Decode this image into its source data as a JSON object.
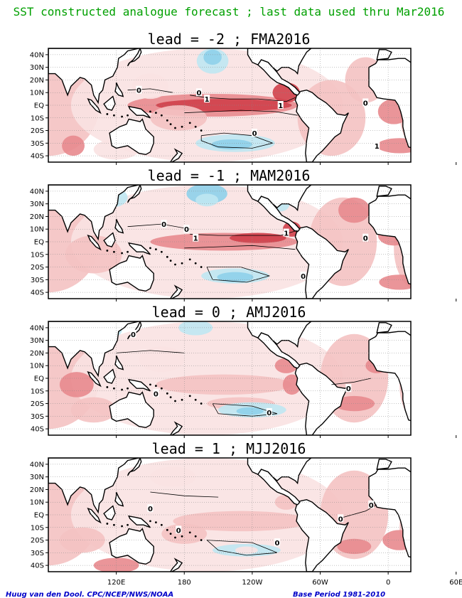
{
  "figure": {
    "title": "SST constructed analogue forecast ; last data used thru Mar2016",
    "title_color": "#00a000",
    "credit": "Huug van den Dool. CPC/NCEP/NWS/NOAA",
    "base_period": "Base Period 1981-2010",
    "footer_color": "#0000c8"
  },
  "chart_data": [
    {
      "type": "heatmap",
      "title": "lead = -2 ; FMA2016",
      "lat_labels": [
        "40N",
        "30N",
        "20N",
        "10N",
        "EQ",
        "10S",
        "20S",
        "30S",
        "40S"
      ],
      "contour_labels": [
        "0",
        "0",
        "1",
        "1",
        "0",
        "0",
        "1"
      ],
      "features": [
        "strong positive anomaly along equatorial Pacific",
        "negative anomaly North Pacific",
        "negative anomaly South Pacific",
        "positive anomaly Atlantic"
      ]
    },
    {
      "type": "heatmap",
      "title": "lead = -1 ; MAM2016",
      "lat_labels": [
        "40N",
        "30N",
        "20N",
        "10N",
        "EQ",
        "10S",
        "20S",
        "30S",
        "40S"
      ],
      "contour_labels": [
        "0",
        "0",
        "1",
        "1",
        "0",
        "0"
      ],
      "features": [
        "positive anomaly along equatorial Pacific",
        "negative anomaly North Pacific",
        "negative anomaly South Pacific"
      ]
    },
    {
      "type": "heatmap",
      "title": "lead = 0 ; AMJ2016",
      "lat_labels": [
        "40N",
        "30N",
        "20N",
        "10N",
        "EQ",
        "10S",
        "20S",
        "30S",
        "40S"
      ],
      "contour_labels": [
        "0",
        "0",
        "0",
        "0"
      ],
      "features": [
        "weak positive anomalies",
        "negative anomaly North Pacific",
        "negative anomaly South Pacific"
      ]
    },
    {
      "type": "heatmap",
      "title": "lead = 1 ; MJJ2016",
      "lat_labels": [
        "40N",
        "30N",
        "20N",
        "10N",
        "EQ",
        "10S",
        "20S",
        "30S",
        "40S"
      ],
      "lon_labels": [
        "120E",
        "180",
        "120W",
        "60W",
        "0",
        "60E"
      ],
      "contour_labels": [
        "0",
        "0",
        "0",
        "0",
        "0"
      ],
      "features": [
        "weak positive anomalies",
        "negative anomaly South Pacific"
      ]
    }
  ],
  "colors": {
    "strong_pos": "#d0404a",
    "mid_pos": "#e88a8e",
    "weak_pos": "#f4c2c2",
    "faint_pos": "#fae2e2",
    "weak_neg": "#bfe7f2",
    "mid_neg": "#8ed0ea",
    "land": "#ffffff",
    "coast": "#000000",
    "grid": "#888888"
  }
}
